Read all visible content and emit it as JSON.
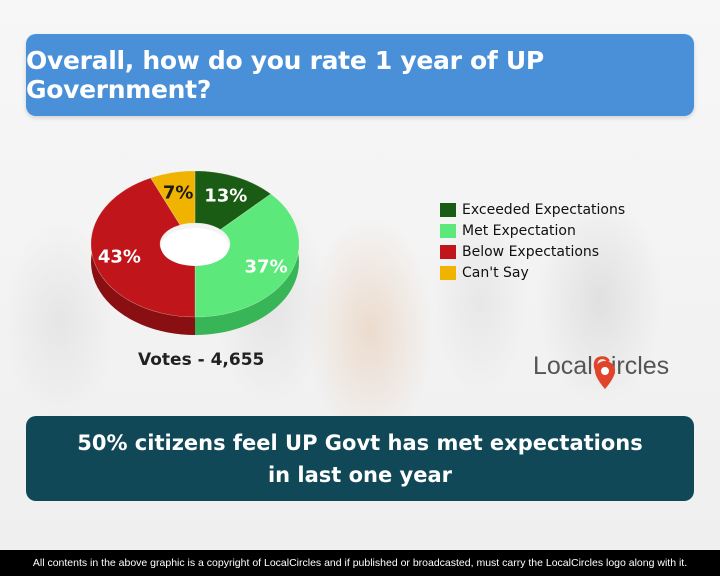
{
  "header": {
    "title": "Overall, how do you rate 1 year of UP Government?"
  },
  "chart_data": {
    "type": "pie",
    "style": "3d-donut",
    "categories": [
      "Exceeded Expectations",
      "Met Expectation",
      "Below Expectations",
      "Can't Say"
    ],
    "values": [
      13,
      37,
      43,
      7
    ],
    "unit": "%",
    "colors": [
      "#1a5c14",
      "#5ce87a",
      "#c0161b",
      "#f0b300"
    ],
    "side_colors": [
      "#0f3d0c",
      "#38b556",
      "#8a0f12",
      "#b88600"
    ],
    "data_labels": [
      "13%",
      "37%",
      "43%",
      "7%"
    ],
    "legend_position": "right"
  },
  "votes_label": "Votes - 4,655",
  "brand": {
    "part1": "Local",
    "part2": "ircles"
  },
  "summary": {
    "line1": "50% citizens feel UP Govt has met expectations",
    "line2": "in last one year"
  },
  "footer": {
    "text": "All contents in the above graphic is a copyright of LocalCircles and if published or broadcasted, must carry the LocalCircles logo along with it."
  }
}
